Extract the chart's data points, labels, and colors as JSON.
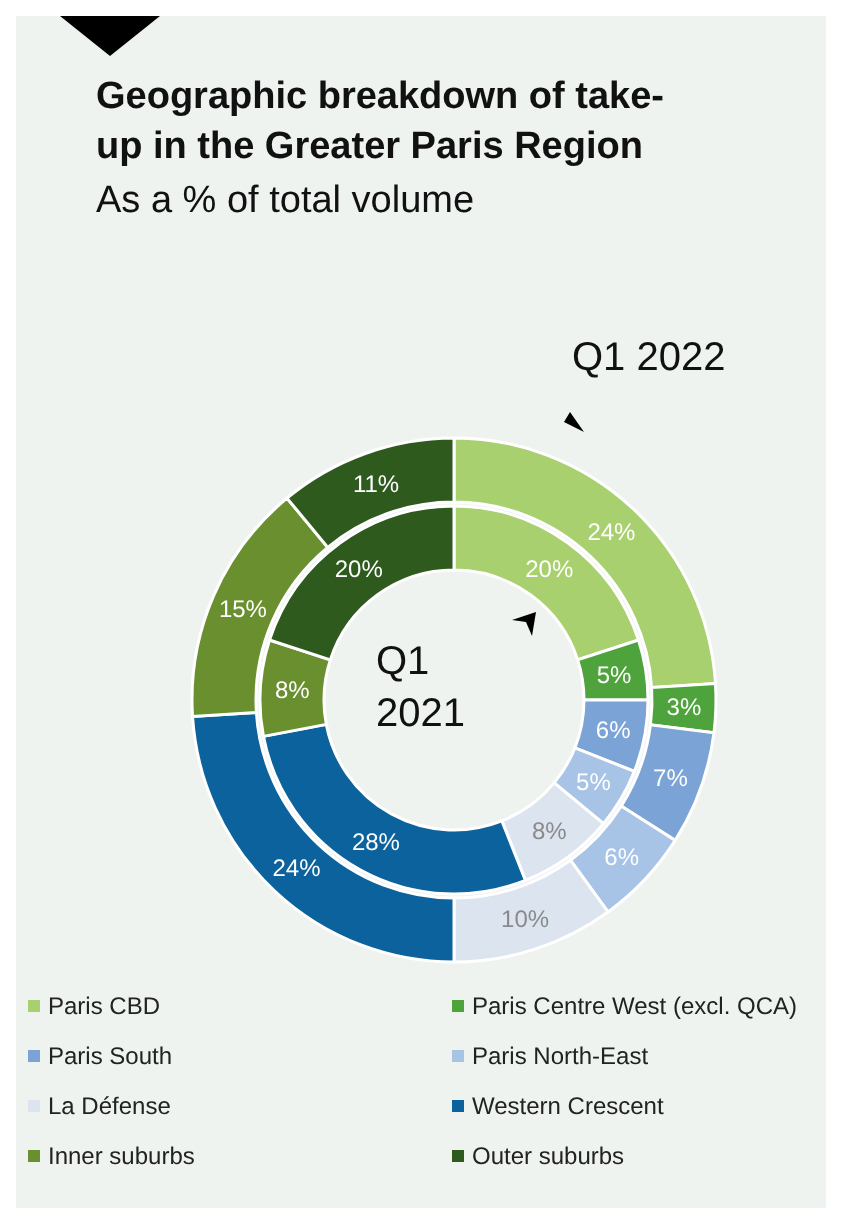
{
  "chart_data": {
    "type": "donut",
    "title": "Geographic breakdown of take-up in the Greater Paris Region",
    "subtitle": "As a % of total volume",
    "categories": [
      "Paris CBD",
      "Paris Centre West (excl. QCA)",
      "Paris South",
      "Paris North-East",
      "La Défense",
      "Western Crescent",
      "Inner suburbs",
      "Outer suburbs"
    ],
    "colors": [
      "#a9d06e",
      "#4ea33c",
      "#7ba3d6",
      "#a7c3e6",
      "#dce4f0",
      "#0b629c",
      "#6a8f2e",
      "#2e5a1e"
    ],
    "series": [
      {
        "name": "Q1 2022",
        "values": [
          24,
          3,
          7,
          6,
          10,
          24,
          15,
          11
        ],
        "value_labels": [
          "24%",
          "3%",
          "7%",
          "6%",
          "10%",
          "24%",
          "15%",
          "11%"
        ]
      },
      {
        "name": "Q1 2021",
        "values": [
          20,
          5,
          6,
          5,
          8,
          28,
          8,
          20
        ],
        "value_labels": [
          "20%",
          "5%",
          "6%",
          "5%",
          "8%",
          "28%",
          "8%",
          "20%"
        ]
      }
    ],
    "legend": "bottom"
  }
}
